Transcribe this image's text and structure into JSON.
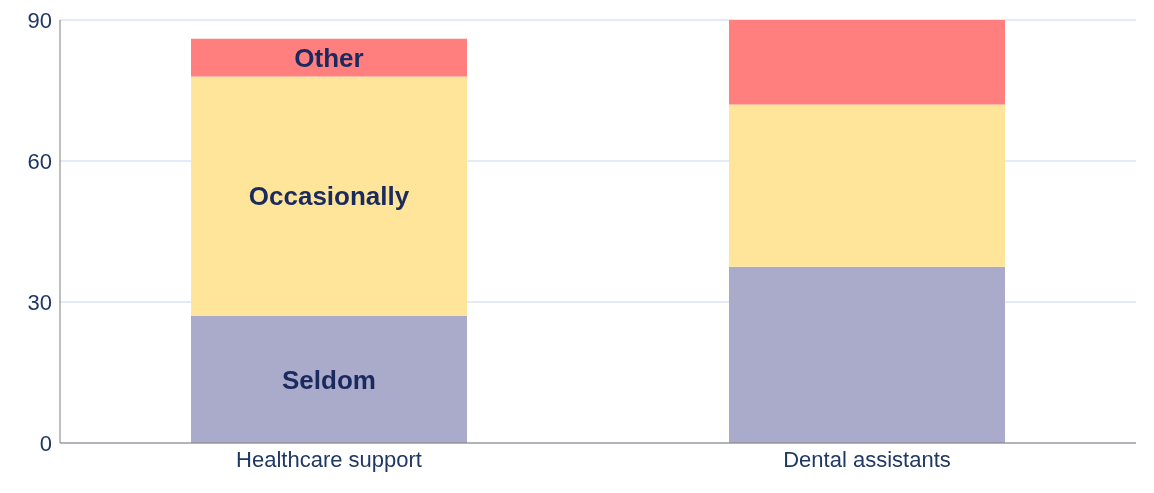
{
  "chart_data": {
    "type": "bar",
    "stacked": true,
    "categories": [
      "Healthcare support",
      "Dental assistants"
    ],
    "series": [
      {
        "name": "Seldom",
        "color": "#aaaacb",
        "values": [
          27,
          37.5
        ]
      },
      {
        "name": "Occasionally",
        "color": "#ffe599",
        "values": [
          51,
          34.5
        ]
      },
      {
        "name": "Other",
        "color": "#ff7f7f",
        "values": [
          8,
          18
        ]
      }
    ],
    "ylim": [
      0,
      90
    ],
    "yticks": [
      0,
      30,
      60,
      90
    ],
    "grid": "y"
  }
}
